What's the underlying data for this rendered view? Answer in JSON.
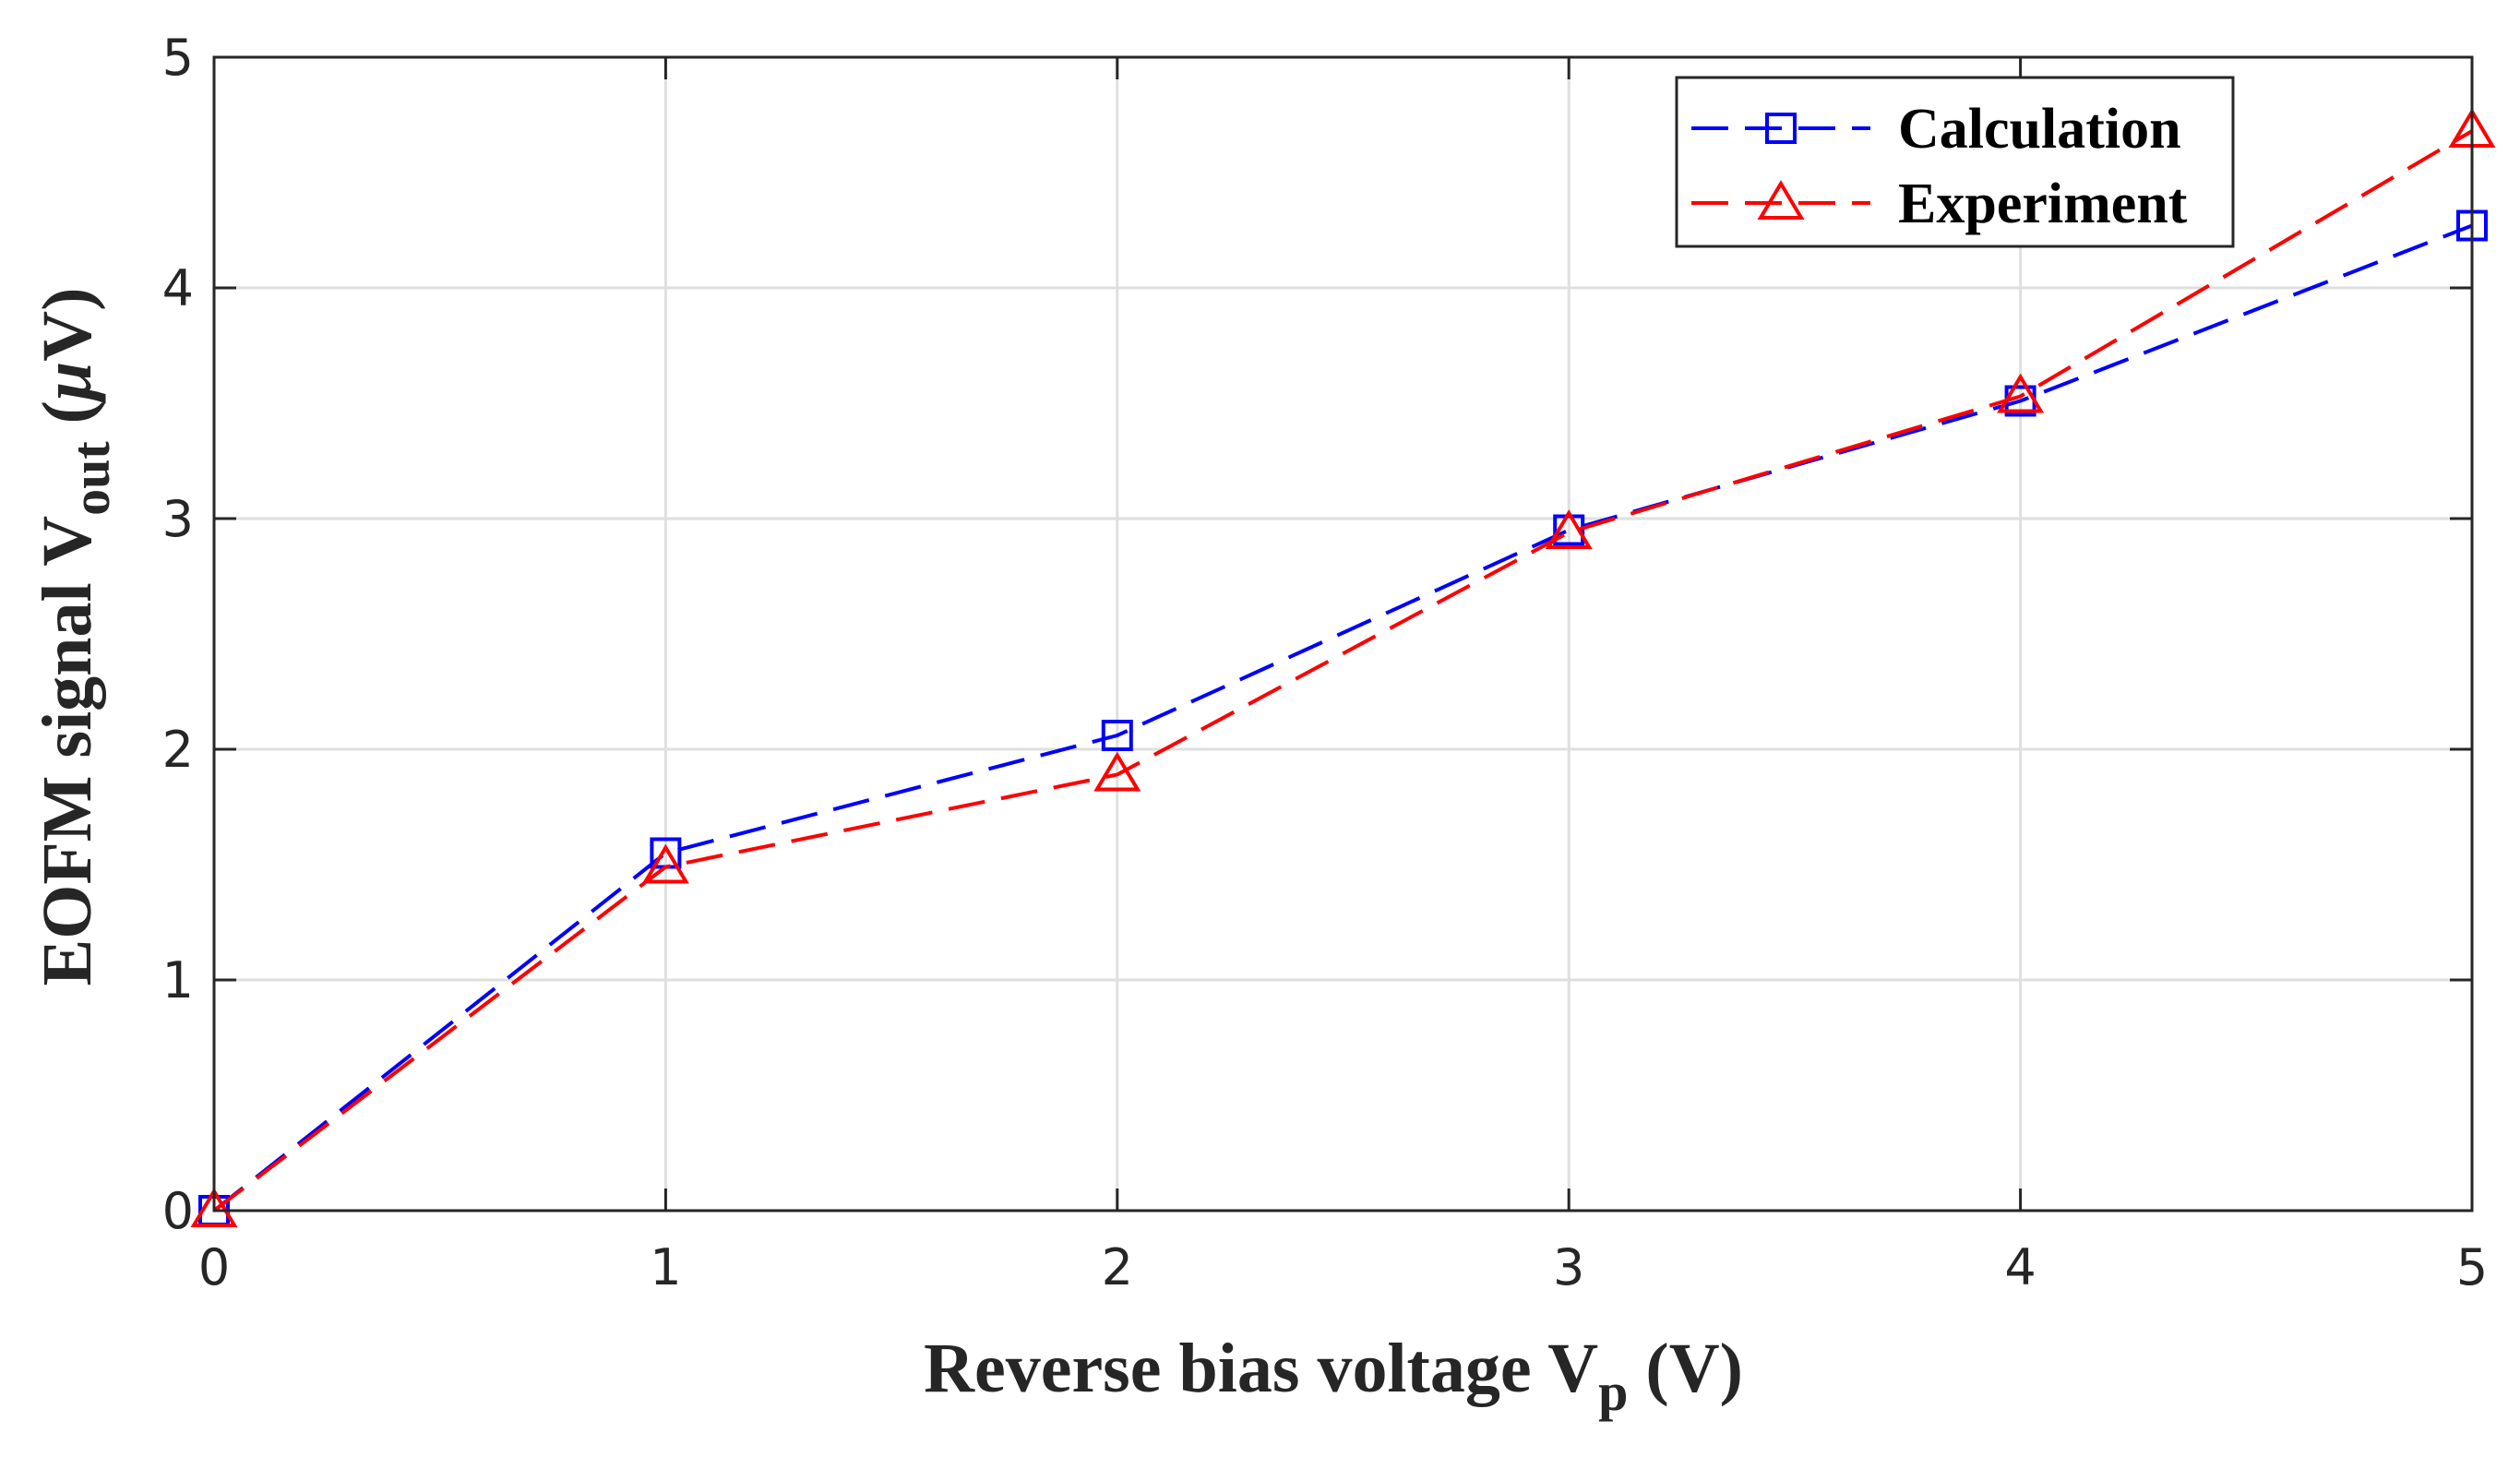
{
  "chart_data": {
    "type": "line",
    "xlabel": {
      "main": "Reverse bias voltage V",
      "sub": "p",
      "unit": " (V)"
    },
    "ylabel": {
      "main": "EOFM signal V",
      "sub": "out",
      "unit_open": " (",
      "mu": "μ",
      "unit_close": "V)"
    },
    "xlim": [
      0,
      5
    ],
    "ylim": [
      0,
      5
    ],
    "xticks": [
      "0",
      "1",
      "2",
      "3",
      "4",
      "5"
    ],
    "yticks": [
      "0",
      "1",
      "2",
      "3",
      "4",
      "5"
    ],
    "grid": true,
    "legend_position": "top-right",
    "series": [
      {
        "name": "Calculation",
        "color": "#0000ff",
        "marker": "square",
        "line": "dashed",
        "x": [
          0,
          1,
          2,
          3,
          4,
          5
        ],
        "y": [
          0.0,
          1.55,
          2.06,
          2.95,
          3.51,
          4.27
        ]
      },
      {
        "name": "Experiment",
        "color": "#ff0000",
        "marker": "triangle",
        "line": "dashed",
        "x": [
          0,
          1,
          2,
          3,
          4,
          5
        ],
        "y": [
          0.0,
          1.49,
          1.89,
          2.94,
          3.53,
          4.68
        ]
      }
    ]
  }
}
